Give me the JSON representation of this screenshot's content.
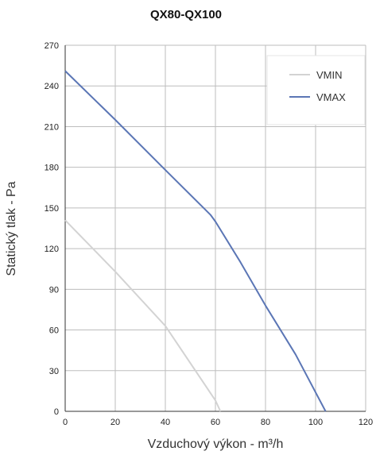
{
  "chart_data": {
    "type": "line",
    "title": "QX80-QX100",
    "xlabel": "Vzduchový výkon - m³/h",
    "ylabel": "Statický tlak - Pa",
    "xlim": [
      0,
      120
    ],
    "ylim": [
      0,
      270
    ],
    "xticks": [
      0,
      20,
      40,
      60,
      80,
      100,
      120
    ],
    "yticks": [
      0,
      30,
      60,
      90,
      120,
      150,
      180,
      210,
      240,
      270
    ],
    "grid": true,
    "legend_position": "top-right",
    "series": [
      {
        "name": "VMIN",
        "color": "#d3d3d3",
        "points": [
          [
            0,
            141
          ],
          [
            20,
            103
          ],
          [
            40,
            63
          ],
          [
            60,
            8
          ],
          [
            62,
            0
          ]
        ]
      },
      {
        "name": "VMAX",
        "color": "#5b76b5",
        "points": [
          [
            0,
            251
          ],
          [
            20,
            215
          ],
          [
            40,
            178
          ],
          [
            58,
            145
          ],
          [
            60,
            140
          ],
          [
            70,
            110
          ],
          [
            80,
            78
          ],
          [
            92,
            42
          ],
          [
            104,
            0
          ]
        ]
      }
    ]
  }
}
